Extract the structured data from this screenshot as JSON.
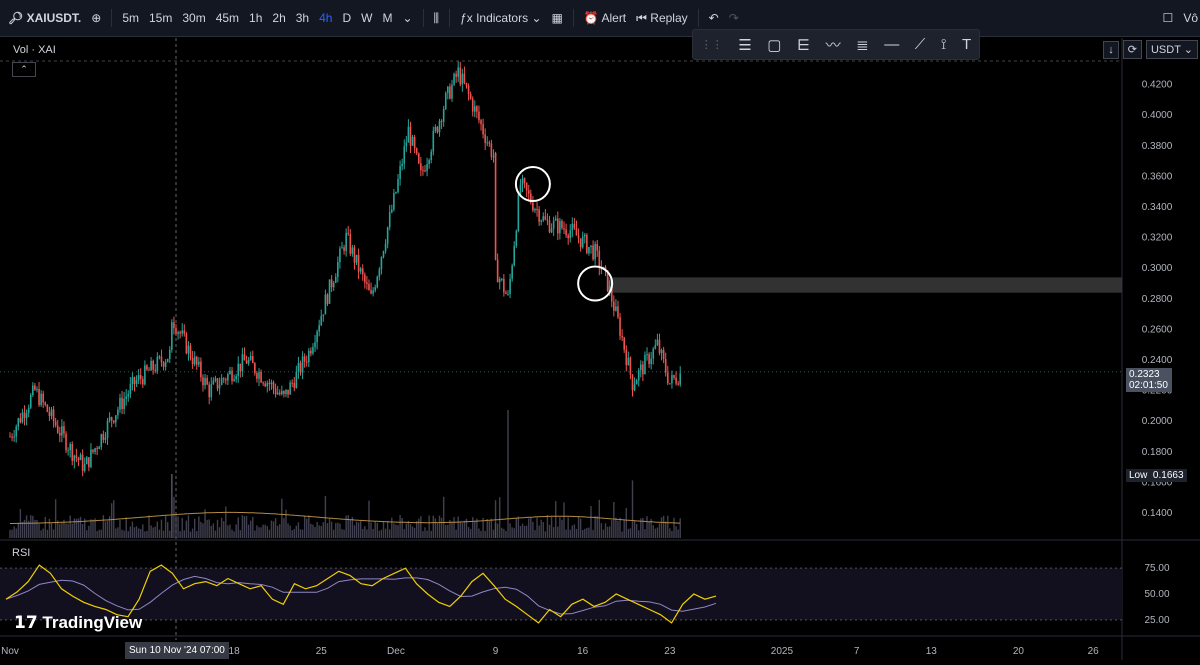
{
  "toolbar": {
    "symbol": "XAIUSDT.",
    "timeframes": [
      "5m",
      "15m",
      "30m",
      "45m",
      "1h",
      "2h",
      "3h",
      "4h",
      "D",
      "W",
      "M"
    ],
    "active_timeframe": "4h",
    "indicators_label": "Indicators",
    "alert_label": "Alert",
    "replay_label": "Replay",
    "corner_text": "Vô"
  },
  "right_controls": {
    "currency": "USDT"
  },
  "panes": {
    "volume_label": "Vol · XAI",
    "rsi_label": "RSI"
  },
  "watermark": "TradingView",
  "crosshair_time": "Sun 10 Nov '24   07:00",
  "current_price": {
    "value": "0.2323",
    "countdown": "02:01:50",
    "color": "#4a5160"
  },
  "low_marker": {
    "label": "Low",
    "value": "0.1663"
  },
  "colors": {
    "up": "#26a69a",
    "down": "#ef5350",
    "volume_ma": "#b38b45",
    "rsi": "#f0d000",
    "rsi_ma": "#8f88c4",
    "zone": "#3b3b3b"
  },
  "chart_data": [
    {
      "type": "candlestick",
      "name": "XAIUSDT 4h",
      "price_axis": {
        "ticks": [
          0.14,
          0.16,
          0.18,
          0.2,
          0.22,
          0.24,
          0.26,
          0.28,
          0.3,
          0.32,
          0.34,
          0.36,
          0.38,
          0.4,
          0.42
        ]
      },
      "time_axis": {
        "ticks": [
          "Nov",
          "10",
          "18",
          "25",
          "Dec",
          "9",
          "16",
          "23",
          "2025",
          "7",
          "13",
          "20",
          "26"
        ]
      },
      "price_path": [
        {
          "date": "2024-10-31",
          "price": 0.19
        },
        {
          "date": "2024-11-02",
          "price": 0.22
        },
        {
          "date": "2024-11-05",
          "price": 0.18
        },
        {
          "date": "2024-11-06",
          "price": 0.17
        },
        {
          "date": "2024-11-08",
          "price": 0.2
        },
        {
          "date": "2024-11-10",
          "price": 0.225
        },
        {
          "date": "2024-11-13",
          "price": 0.245
        },
        {
          "date": "2024-11-13",
          "price": 0.268
        },
        {
          "date": "2024-11-16",
          "price": 0.22
        },
        {
          "date": "2024-11-19",
          "price": 0.24
        },
        {
          "date": "2024-11-22",
          "price": 0.215
        },
        {
          "date": "2024-11-24",
          "price": 0.245
        },
        {
          "date": "2024-11-27",
          "price": 0.32
        },
        {
          "date": "2024-11-29",
          "price": 0.28
        },
        {
          "date": "2024-12-01",
          "price": 0.35
        },
        {
          "date": "2024-12-02",
          "price": 0.39
        },
        {
          "date": "2024-12-03",
          "price": 0.36
        },
        {
          "date": "2024-12-05",
          "price": 0.41
        },
        {
          "date": "2024-12-06",
          "price": 0.428
        },
        {
          "date": "2024-12-07",
          "price": 0.41
        },
        {
          "date": "2024-12-09",
          "price": 0.37
        },
        {
          "date": "2024-12-09",
          "price": 0.3
        },
        {
          "date": "2024-12-10",
          "price": 0.28
        },
        {
          "date": "2024-12-11",
          "price": 0.355
        },
        {
          "date": "2024-12-13",
          "price": 0.33
        },
        {
          "date": "2024-12-15",
          "price": 0.325
        },
        {
          "date": "2024-12-17",
          "price": 0.31
        },
        {
          "date": "2024-12-18",
          "price": 0.29
        },
        {
          "date": "2024-12-19",
          "price": 0.26
        },
        {
          "date": "2024-12-20",
          "price": 0.225
        },
        {
          "date": "2024-12-22",
          "price": 0.25
        },
        {
          "date": "2024-12-23",
          "price": 0.225
        },
        {
          "date": "2024-12-24",
          "price": 0.232
        }
      ],
      "annotations": [
        {
          "type": "circle",
          "date": "2024-12-12",
          "price": 0.355
        },
        {
          "type": "circle",
          "date": "2024-12-17",
          "price": 0.29
        },
        {
          "type": "zone",
          "from_date": "2024-12-18",
          "price_low": 0.284,
          "price_high": 0.294
        }
      ]
    },
    {
      "type": "bar",
      "name": "Vol",
      "note": "relative volume 0-1",
      "spikes": [
        {
          "date": "2024-11-13",
          "value": 0.5
        },
        {
          "date": "2024-12-10",
          "value": 1.0
        },
        {
          "date": "2024-12-20",
          "value": 0.45
        }
      ]
    },
    {
      "type": "line",
      "name": "RSI",
      "y_ticks": [
        25,
        50,
        75
      ],
      "ylim": [
        20,
        80
      ],
      "values": [
        45,
        52,
        62,
        78,
        70,
        55,
        48,
        42,
        38,
        35,
        30,
        28,
        45,
        72,
        78,
        70,
        55,
        60,
        62,
        58,
        65,
        60,
        55,
        58,
        45,
        40,
        60,
        55,
        58,
        65,
        72,
        68,
        60,
        58,
        65,
        70,
        75,
        60,
        50,
        42,
        38,
        48,
        62,
        70,
        58,
        45,
        38,
        30,
        22,
        35,
        28,
        40,
        45,
        38,
        42,
        50,
        45,
        40,
        35,
        30,
        22,
        40,
        50,
        45,
        48
      ]
    }
  ]
}
